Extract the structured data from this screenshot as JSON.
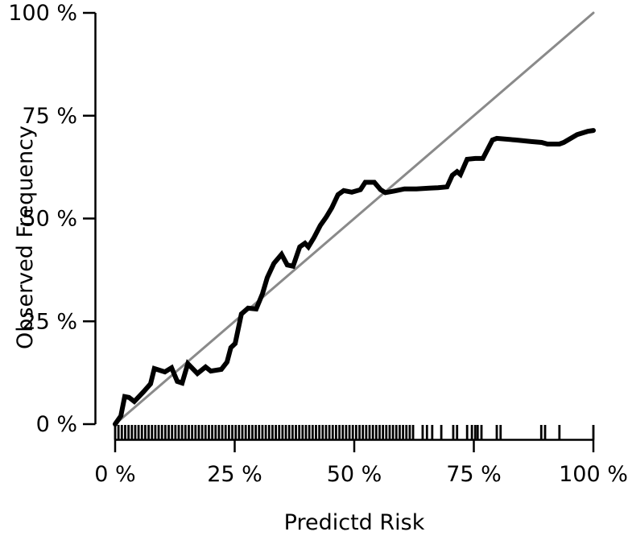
{
  "chart_data": {
    "type": "line",
    "title": "",
    "xlabel": "Predictd Risk",
    "ylabel": "Observed Frequency",
    "xlim": [
      0,
      100
    ],
    "ylim": [
      0,
      100
    ],
    "grid": false,
    "legend": null,
    "x_tick_values": [
      0,
      25,
      50,
      75,
      100
    ],
    "x_tick_labels": [
      "0 %",
      "25 %",
      "50 %",
      "75 %",
      "100 %"
    ],
    "y_tick_values": [
      0,
      25,
      50,
      75,
      100
    ],
    "y_tick_labels": [
      "0 %",
      "25 %",
      "50 %",
      "75 %",
      "100 %"
    ],
    "series": [
      {
        "name": "ideal-line",
        "color": "#8a8a8a",
        "width": 3,
        "points": [
          [
            0,
            0
          ],
          [
            100,
            100
          ]
        ]
      },
      {
        "name": "calibration-curve",
        "color": "#000000",
        "width": 6,
        "points": [
          [
            0,
            0
          ],
          [
            1.2,
            2
          ],
          [
            2,
            6.7
          ],
          [
            2.9,
            6.5
          ],
          [
            4,
            5.5
          ],
          [
            5.9,
            7.8
          ],
          [
            7.4,
            9.8
          ],
          [
            8.2,
            13.5
          ],
          [
            10.4,
            12.7
          ],
          [
            11.8,
            13.7
          ],
          [
            13,
            10.4
          ],
          [
            14,
            10
          ],
          [
            15.2,
            14.7
          ],
          [
            17.2,
            12.3
          ],
          [
            18.9,
            13.9
          ],
          [
            20,
            12.9
          ],
          [
            22.2,
            13.3
          ],
          [
            23.4,
            15.1
          ],
          [
            24.2,
            18.6
          ],
          [
            25.1,
            19.6
          ],
          [
            26.4,
            26.8
          ],
          [
            27.8,
            28.2
          ],
          [
            29.5,
            28
          ],
          [
            30.8,
            31.7
          ],
          [
            31.8,
            35.6
          ],
          [
            33.2,
            39.1
          ],
          [
            34.8,
            41.3
          ],
          [
            36,
            38.7
          ],
          [
            37.2,
            38.4
          ],
          [
            38.6,
            43.1
          ],
          [
            39.7,
            44
          ],
          [
            40.4,
            43.1
          ],
          [
            41.6,
            45.4
          ],
          [
            42.9,
            48.3
          ],
          [
            44.1,
            50.3
          ],
          [
            45.3,
            52.6
          ],
          [
            46.6,
            55.8
          ],
          [
            47.8,
            56.8
          ],
          [
            49.5,
            56.4
          ],
          [
            51.3,
            57
          ],
          [
            52.3,
            58.8
          ],
          [
            54.2,
            58.8
          ],
          [
            55.5,
            57
          ],
          [
            56.5,
            56.3
          ],
          [
            58.4,
            56.7
          ],
          [
            60.5,
            57.2
          ],
          [
            63,
            57.2
          ],
          [
            65.7,
            57.4
          ],
          [
            67.5,
            57.5
          ],
          [
            69.4,
            57.7
          ],
          [
            70.5,
            60.5
          ],
          [
            71.5,
            61.4
          ],
          [
            72.2,
            60.7
          ],
          [
            73.6,
            64.4
          ],
          [
            75.3,
            64.6
          ],
          [
            76.9,
            64.6
          ],
          [
            78.9,
            69.1
          ],
          [
            79.8,
            69.5
          ],
          [
            83.7,
            69.1
          ],
          [
            87,
            68.7
          ],
          [
            89.2,
            68.5
          ],
          [
            90.4,
            68.1
          ],
          [
            92.9,
            68.1
          ],
          [
            93.8,
            68.5
          ],
          [
            96.6,
            70.4
          ],
          [
            98.8,
            71.2
          ],
          [
            100,
            71.4
          ]
        ]
      }
    ],
    "rug": {
      "dense_start": 0,
      "dense_end": 62.3,
      "dense_step": 0.7,
      "sparse": [
        64.3,
        65.2,
        66.3,
        68.2,
        70.7,
        71.5,
        73.6,
        74.6,
        75.3,
        75.8,
        76.6,
        79.8,
        80.6,
        89.1,
        89.9,
        92.9,
        100
      ]
    },
    "colors": {
      "axis": "#000000",
      "text": "#000000",
      "curve": "#000000",
      "ideal": "#8a8a8a",
      "background": "#ffffff"
    }
  }
}
